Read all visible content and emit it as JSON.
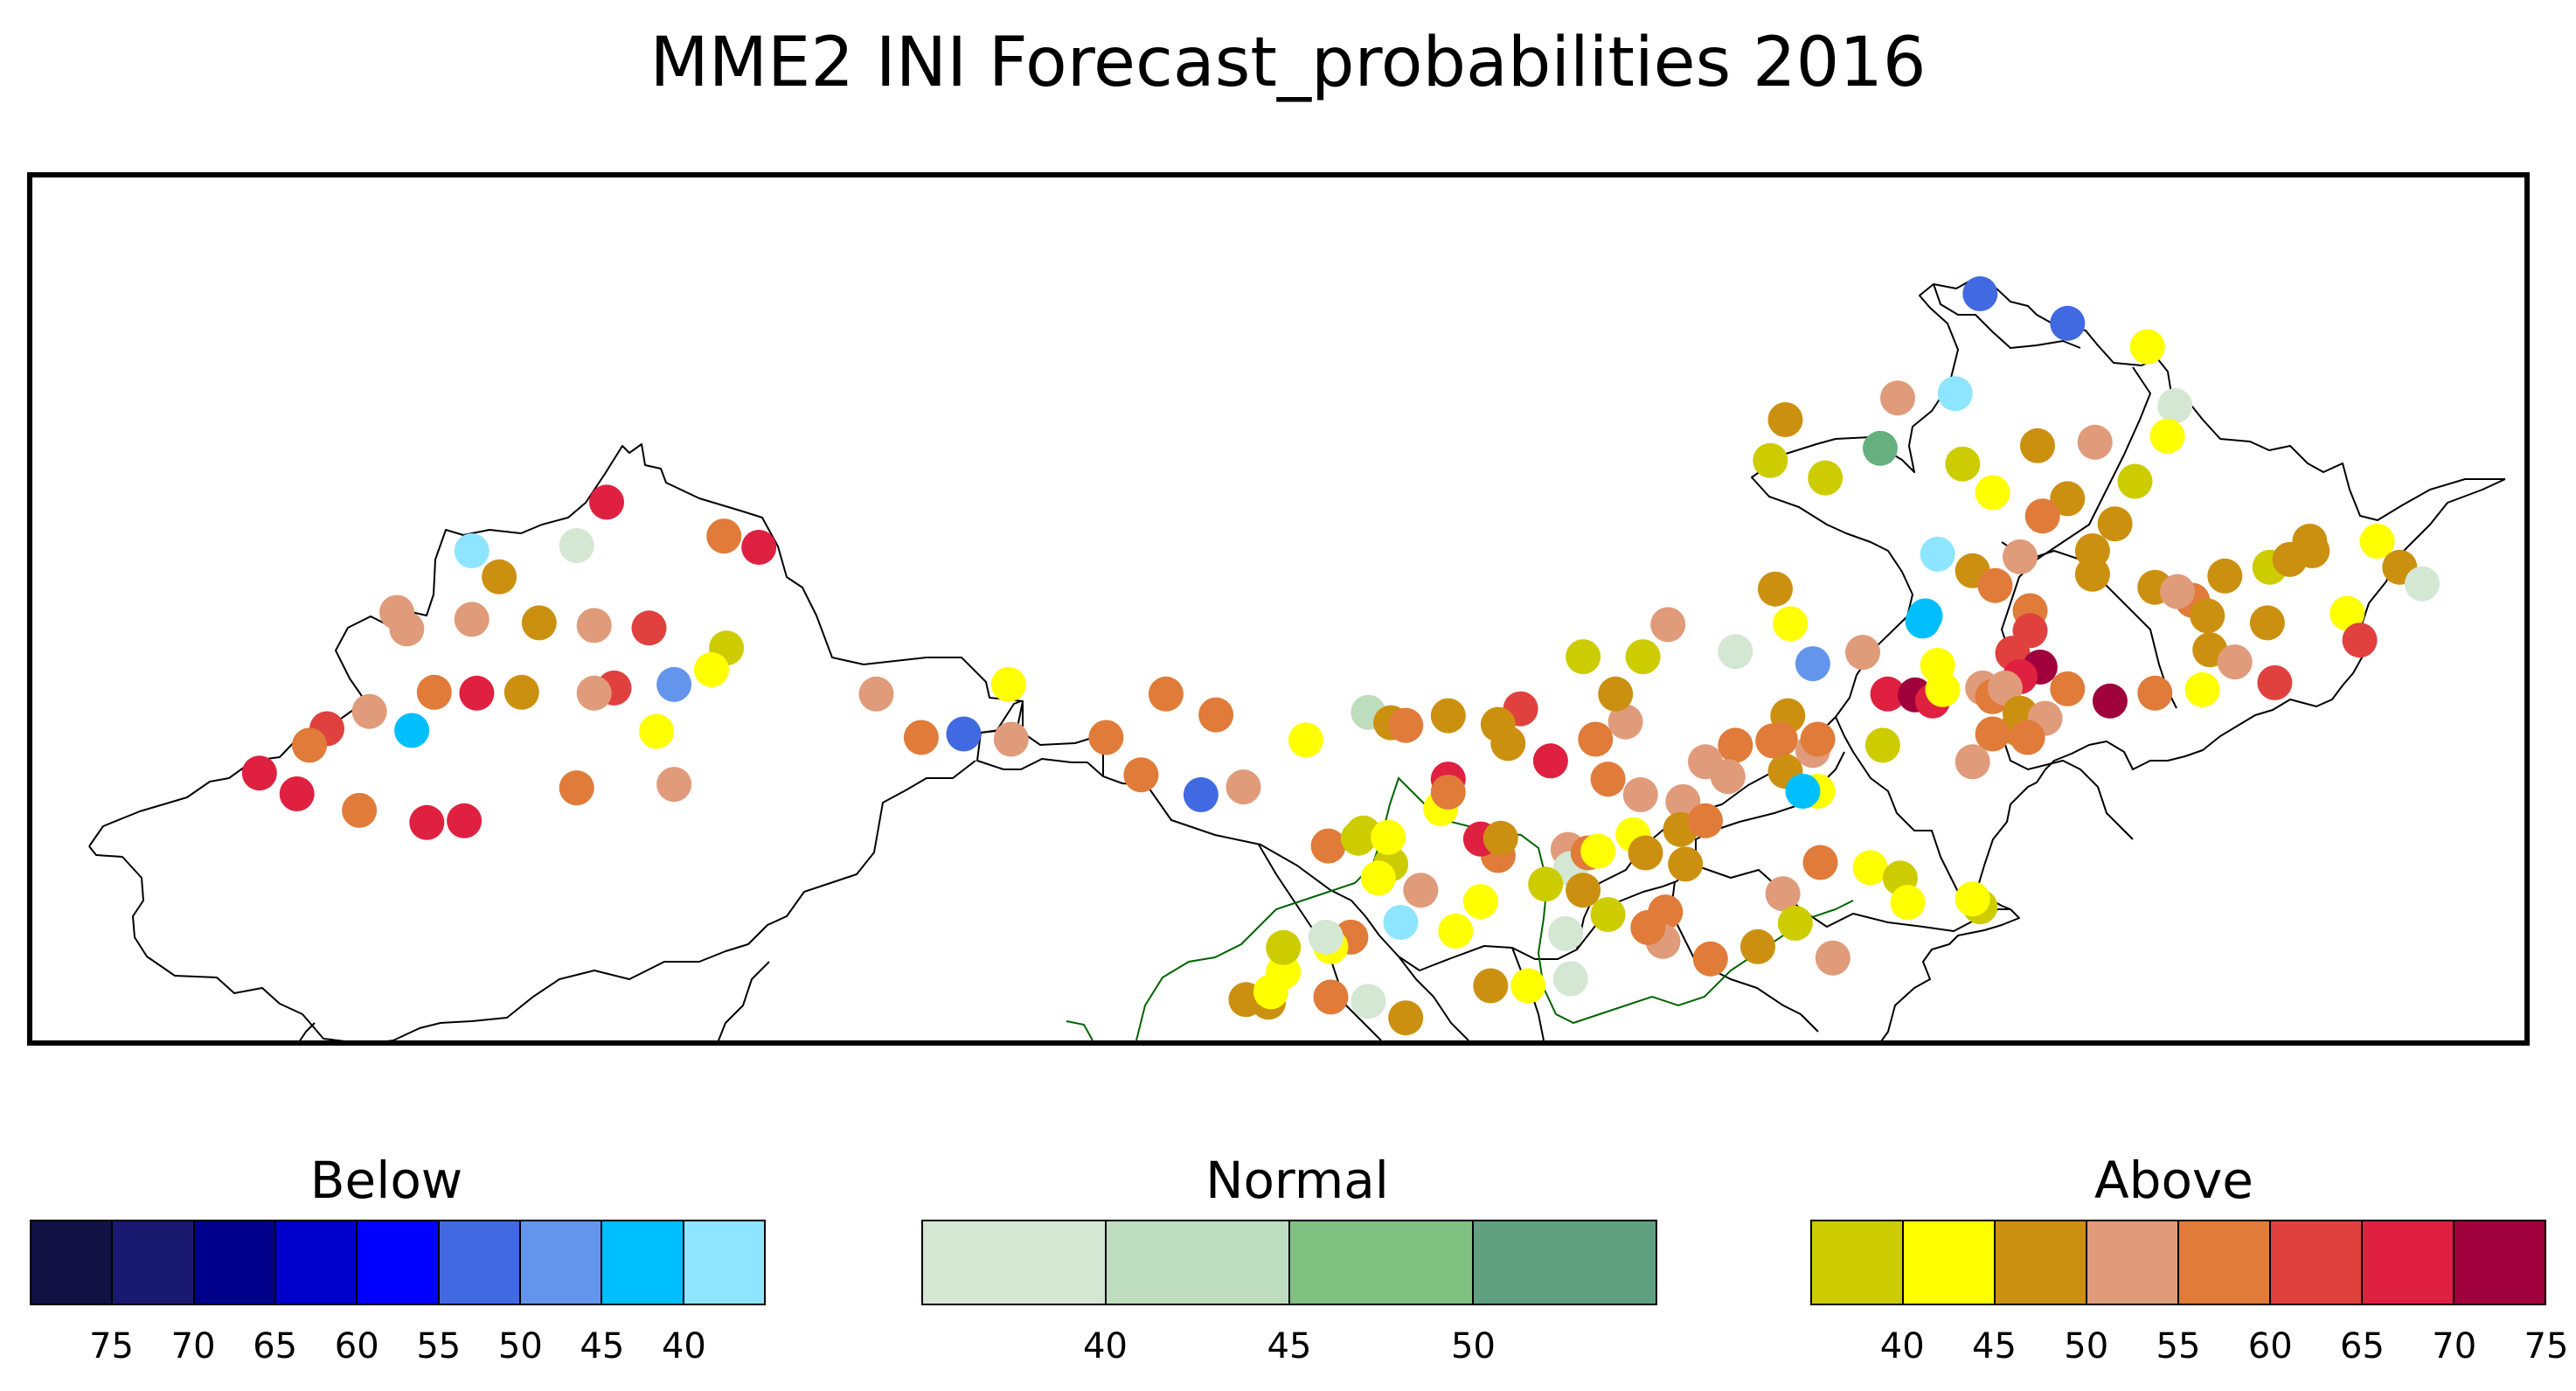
{
  "title": "MME2 INI Forecast_probabilities 2016",
  "legends": {
    "below": {
      "title": "Below",
      "colors": [
        "#111144",
        "#191970",
        "#00008b",
        "#0000cd",
        "#0000ff",
        "#4169e1",
        "#6495ed",
        "#00bfff",
        "#8ee5ff"
      ],
      "ticks": [
        "75",
        "70",
        "65",
        "60",
        "55",
        "50",
        "45",
        "40"
      ]
    },
    "normal": {
      "title": "Normal",
      "colors": [
        "#d3e7d3",
        "#bedcbe",
        "#80c080",
        "#5fa080"
      ],
      "ticks": [
        "40",
        "45",
        "50"
      ]
    },
    "above": {
      "title": "Above",
      "colors": [
        "#cccc00",
        "#ffff00",
        "#cc9011",
        "#e09b7a",
        "#e07b39",
        "#e0413f",
        "#e02040",
        "#a0003c"
      ],
      "ticks": [
        "40",
        "45",
        "50",
        "55",
        "60",
        "65",
        "70",
        "75"
      ]
    }
  },
  "stations": [
    {
      "lon": 0.231,
      "lat": 0.623,
      "c": "#e02040"
    },
    {
      "lon": 0.177,
      "lat": 0.567,
      "c": "#8ee5ff"
    },
    {
      "lon": 0.219,
      "lat": 0.573,
      "c": "#d3e7d3"
    },
    {
      "lon": 0.278,
      "lat": 0.584,
      "c": "#e07b39"
    },
    {
      "lon": 0.292,
      "lat": 0.571,
      "c": "#e02040"
    },
    {
      "lon": 0.188,
      "lat": 0.537,
      "c": "#cc9011"
    },
    {
      "lon": 0.147,
      "lat": 0.496,
      "c": "#e09b7a"
    },
    {
      "lon": 0.151,
      "lat": 0.477,
      "c": "#e09b7a"
    },
    {
      "lon": 0.177,
      "lat": 0.488,
      "c": "#e09b7a"
    },
    {
      "lon": 0.204,
      "lat": 0.484,
      "c": "#cc9011"
    },
    {
      "lon": 0.226,
      "lat": 0.481,
      "c": "#e09b7a"
    },
    {
      "lon": 0.248,
      "lat": 0.478,
      "c": "#e0413f"
    },
    {
      "lon": 0.279,
      "lat": 0.455,
      "c": "#cccc00"
    },
    {
      "lon": 0.273,
      "lat": 0.43,
      "c": "#ffff00"
    },
    {
      "lon": 0.258,
      "lat": 0.413,
      "c": "#6495ed"
    },
    {
      "lon": 0.234,
      "lat": 0.409,
      "c": "#e0413f"
    },
    {
      "lon": 0.226,
      "lat": 0.403,
      "c": "#e09b7a"
    },
    {
      "lon": 0.197,
      "lat": 0.404,
      "c": "#cc9011"
    },
    {
      "lon": 0.179,
      "lat": 0.403,
      "c": "#e02040"
    },
    {
      "lon": 0.162,
      "lat": 0.404,
      "c": "#e07b39"
    },
    {
      "lon": 0.136,
      "lat": 0.382,
      "c": "#e09b7a"
    },
    {
      "lon": 0.153,
      "lat": 0.36,
      "c": "#00bfff"
    },
    {
      "lon": 0.119,
      "lat": 0.362,
      "c": "#e0413f"
    },
    {
      "lon": 0.112,
      "lat": 0.343,
      "c": "#e07b39"
    },
    {
      "lon": 0.251,
      "lat": 0.359,
      "c": "#ffff00"
    },
    {
      "lon": 0.258,
      "lat": 0.298,
      "c": "#e09b7a"
    },
    {
      "lon": 0.219,
      "lat": 0.294,
      "c": "#e07b39"
    },
    {
      "lon": 0.092,
      "lat": 0.311,
      "c": "#e02040"
    },
    {
      "lon": 0.107,
      "lat": 0.287,
      "c": "#e02040"
    },
    {
      "lon": 0.132,
      "lat": 0.268,
      "c": "#e07b39"
    },
    {
      "lon": 0.159,
      "lat": 0.254,
      "c": "#e02040"
    },
    {
      "lon": 0.174,
      "lat": 0.256,
      "c": "#e02040"
    },
    {
      "lon": 0.339,
      "lat": 0.402,
      "c": "#e09b7a"
    },
    {
      "lon": 0.392,
      "lat": 0.413,
      "c": "#ffff00"
    },
    {
      "lon": 0.455,
      "lat": 0.402,
      "c": "#e07b39"
    },
    {
      "lon": 0.475,
      "lat": 0.378,
      "c": "#e07b39"
    },
    {
      "lon": 0.357,
      "lat": 0.352,
      "c": "#e07b39"
    },
    {
      "lon": 0.374,
      "lat": 0.356,
      "c": "#4169e1"
    },
    {
      "lon": 0.393,
      "lat": 0.35,
      "c": "#e09b7a"
    },
    {
      "lon": 0.431,
      "lat": 0.352,
      "c": "#e07b39"
    },
    {
      "lon": 0.445,
      "lat": 0.309,
      "c": "#e07b39"
    },
    {
      "lon": 0.469,
      "lat": 0.286,
      "c": "#4169e1"
    },
    {
      "lon": 0.486,
      "lat": 0.295,
      "c": "#e09b7a"
    },
    {
      "lon": 0.511,
      "lat": 0.349,
      "c": "#ffff00"
    },
    {
      "lon": 0.536,
      "lat": 0.381,
      "c": "#bedcbe"
    },
    {
      "lon": 0.545,
      "lat": 0.369,
      "c": "#cc9011"
    },
    {
      "lon": 0.551,
      "lat": 0.366,
      "c": "#e07b39"
    },
    {
      "lon": 0.568,
      "lat": 0.377,
      "c": "#cc9011"
    },
    {
      "lon": 0.597,
      "lat": 0.385,
      "c": "#e0413f"
    },
    {
      "lon": 0.588,
      "lat": 0.367,
      "c": "#cc9011"
    },
    {
      "lon": 0.592,
      "lat": 0.345,
      "c": "#cc9011"
    },
    {
      "lon": 0.609,
      "lat": 0.325,
      "c": "#e02040"
    },
    {
      "lon": 0.627,
      "lat": 0.35,
      "c": "#e07b39"
    },
    {
      "lon": 0.639,
      "lat": 0.37,
      "c": "#e09b7a"
    },
    {
      "lon": 0.635,
      "lat": 0.402,
      "c": "#cc9011"
    },
    {
      "lon": 0.622,
      "lat": 0.445,
      "c": "#cccc00"
    },
    {
      "lon": 0.646,
      "lat": 0.445,
      "c": "#cccc00"
    },
    {
      "lon": 0.656,
      "lat": 0.482,
      "c": "#e09b7a"
    },
    {
      "lon": 0.683,
      "lat": 0.451,
      "c": "#d3e7d3"
    },
    {
      "lon": 0.705,
      "lat": 0.483,
      "c": "#ffff00"
    },
    {
      "lon": 0.714,
      "lat": 0.437,
      "c": "#6495ed"
    },
    {
      "lon": 0.734,
      "lat": 0.45,
      "c": "#e09b7a"
    },
    {
      "lon": 0.758,
      "lat": 0.486,
      "c": "#00bfff"
    },
    {
      "lon": 0.764,
      "lat": 0.435,
      "c": "#ffff00"
    },
    {
      "lon": 0.699,
      "lat": 0.523,
      "c": "#cc9011"
    },
    {
      "lon": 0.703,
      "lat": 0.718,
      "c": "#cc9011"
    },
    {
      "lon": 0.697,
      "lat": 0.671,
      "c": "#cccc00"
    },
    {
      "lon": 0.719,
      "lat": 0.651,
      "c": "#cccc00"
    },
    {
      "lon": 0.741,
      "lat": 0.685,
      "c": "#66b080"
    },
    {
      "lon": 0.748,
      "lat": 0.743,
      "c": "#e09b7a"
    },
    {
      "lon": 0.781,
      "lat": 0.863,
      "c": "#4169e1"
    },
    {
      "lon": 0.816,
      "lat": 0.829,
      "c": "#4169e1"
    },
    {
      "lon": 0.848,
      "lat": 0.802,
      "c": "#ffff00"
    },
    {
      "lon": 0.859,
      "lat": 0.734,
      "c": "#d3e7d3"
    },
    {
      "lon": 0.856,
      "lat": 0.699,
      "c": "#ffff00"
    },
    {
      "lon": 0.843,
      "lat": 0.647,
      "c": "#cccc00"
    },
    {
      "lon": 0.827,
      "lat": 0.692,
      "c": "#e09b7a"
    },
    {
      "lon": 0.804,
      "lat": 0.688,
      "c": "#cc9011"
    },
    {
      "lon": 0.771,
      "lat": 0.748,
      "c": "#8ee5ff"
    },
    {
      "lon": 0.774,
      "lat": 0.667,
      "c": "#cccc00"
    },
    {
      "lon": 0.786,
      "lat": 0.634,
      "c": "#ffff00"
    },
    {
      "lon": 0.816,
      "lat": 0.627,
      "c": "#cc9011"
    },
    {
      "lon": 0.806,
      "lat": 0.607,
      "c": "#e07b39"
    },
    {
      "lon": 0.835,
      "lat": 0.598,
      "c": "#cc9011"
    },
    {
      "lon": 0.826,
      "lat": 0.567,
      "c": "#cc9011"
    },
    {
      "lon": 0.797,
      "lat": 0.56,
      "c": "#e09b7a"
    },
    {
      "lon": 0.764,
      "lat": 0.563,
      "c": "#8ee5ff"
    },
    {
      "lon": 0.778,
      "lat": 0.544,
      "c": "#cc9011"
    },
    {
      "lon": 0.787,
      "lat": 0.527,
      "c": "#e07b39"
    },
    {
      "lon": 0.759,
      "lat": 0.492,
      "c": "#00bfff"
    },
    {
      "lon": 0.801,
      "lat": 0.498,
      "c": "#e07b39"
    },
    {
      "lon": 0.801,
      "lat": 0.475,
      "c": "#e0413f"
    },
    {
      "lon": 0.794,
      "lat": 0.449,
      "c": "#e0413f"
    },
    {
      "lon": 0.805,
      "lat": 0.433,
      "c": "#a0003c"
    },
    {
      "lon": 0.797,
      "lat": 0.422,
      "c": "#e02040"
    },
    {
      "lon": 0.816,
      "lat": 0.408,
      "c": "#e07b39"
    },
    {
      "lon": 0.833,
      "lat": 0.394,
      "c": "#a0003c"
    },
    {
      "lon": 0.826,
      "lat": 0.54,
      "c": "#cc9011"
    },
    {
      "lon": 0.851,
      "lat": 0.525,
      "c": "#cc9011"
    },
    {
      "lon": 0.866,
      "lat": 0.51,
      "c": "#e07b39"
    },
    {
      "lon": 0.879,
      "lat": 0.538,
      "c": "#cc9011"
    },
    {
      "lon": 0.897,
      "lat": 0.548,
      "c": "#cccc00"
    },
    {
      "lon": 0.905,
      "lat": 0.557,
      "c": "#cc9011"
    },
    {
      "lon": 0.914,
      "lat": 0.567,
      "c": "#cc9011"
    },
    {
      "lon": 0.913,
      "lat": 0.578,
      "c": "#cc9011"
    },
    {
      "lon": 0.94,
      "lat": 0.578,
      "c": "#ffff00"
    },
    {
      "lon": 0.949,
      "lat": 0.548,
      "c": "#cc9011"
    },
    {
      "lon": 0.958,
      "lat": 0.529,
      "c": "#d3e7d3"
    },
    {
      "lon": 0.928,
      "lat": 0.495,
      "c": "#ffff00"
    },
    {
      "lon": 0.896,
      "lat": 0.484,
      "c": "#cc9011"
    },
    {
      "lon": 0.872,
      "lat": 0.492,
      "c": "#cc9011"
    },
    {
      "lon": 0.86,
      "lat": 0.52,
      "c": "#e09b7a"
    },
    {
      "lon": 0.873,
      "lat": 0.453,
      "c": "#cc9011"
    },
    {
      "lon": 0.883,
      "lat": 0.439,
      "c": "#e09b7a"
    },
    {
      "lon": 0.899,
      "lat": 0.415,
      "c": "#e0413f"
    },
    {
      "lon": 0.933,
      "lat": 0.464,
      "c": "#e0413f"
    },
    {
      "lon": 0.87,
      "lat": 0.407,
      "c": "#ffff00"
    },
    {
      "lon": 0.851,
      "lat": 0.403,
      "c": "#e07b39"
    },
    {
      "lon": 0.744,
      "lat": 0.402,
      "c": "#e02040"
    },
    {
      "lon": 0.755,
      "lat": 0.401,
      "c": "#a0003c"
    },
    {
      "lon": 0.762,
      "lat": 0.394,
      "c": "#e02040"
    },
    {
      "lon": 0.766,
      "lat": 0.407,
      "c": "#ffff00"
    },
    {
      "lon": 0.782,
      "lat": 0.409,
      "c": "#e09b7a"
    },
    {
      "lon": 0.786,
      "lat": 0.399,
      "c": "#e07b39"
    },
    {
      "lon": 0.791,
      "lat": 0.409,
      "c": "#e09b7a"
    },
    {
      "lon": 0.797,
      "lat": 0.38,
      "c": "#cc9011"
    },
    {
      "lon": 0.796,
      "lat": 0.362,
      "c": "#cc9011"
    },
    {
      "lon": 0.807,
      "lat": 0.374,
      "c": "#e09b7a"
    },
    {
      "lon": 0.786,
      "lat": 0.356,
      "c": "#e07b39"
    },
    {
      "lon": 0.8,
      "lat": 0.352,
      "c": "#e07b39"
    },
    {
      "lon": 0.778,
      "lat": 0.324,
      "c": "#e09b7a"
    },
    {
      "lon": 0.742,
      "lat": 0.343,
      "c": "#cccc00"
    },
    {
      "lon": 0.704,
      "lat": 0.377,
      "c": "#cc9011"
    },
    {
      "lon": 0.701,
      "lat": 0.35,
      "c": "#e07b39"
    },
    {
      "lon": 0.683,
      "lat": 0.343,
      "c": "#e07b39"
    },
    {
      "lon": 0.68,
      "lat": 0.307,
      "c": "#e09b7a"
    },
    {
      "lon": 0.703,
      "lat": 0.313,
      "c": "#cc9011"
    },
    {
      "lon": 0.714,
      "lat": 0.337,
      "c": "#e09b7a"
    },
    {
      "lon": 0.716,
      "lat": 0.35,
      "c": "#e07b39"
    },
    {
      "lon": 0.698,
      "lat": 0.348,
      "c": "#e07b39"
    },
    {
      "lon": 0.716,
      "lat": 0.29,
      "c": "#ffff00"
    },
    {
      "lon": 0.71,
      "lat": 0.29,
      "c": "#00bfff"
    },
    {
      "lon": 0.671,
      "lat": 0.324,
      "c": "#e09b7a"
    },
    {
      "lon": 0.662,
      "lat": 0.278,
      "c": "#e09b7a"
    },
    {
      "lon": 0.661,
      "lat": 0.246,
      "c": "#cc9011"
    },
    {
      "lon": 0.645,
      "lat": 0.286,
      "c": "#e09b7a"
    },
    {
      "lon": 0.632,
      "lat": 0.304,
      "c": "#e07b39"
    },
    {
      "lon": 0.616,
      "lat": 0.223,
      "c": "#e09b7a"
    },
    {
      "lon": 0.617,
      "lat": 0.201,
      "c": "#d3e7d3"
    },
    {
      "lon": 0.622,
      "lat": 0.176,
      "c": "#cc9011"
    },
    {
      "lon": 0.642,
      "lat": 0.24,
      "c": "#ffff00"
    },
    {
      "lon": 0.647,
      "lat": 0.219,
      "c": "#cc9011"
    },
    {
      "lon": 0.663,
      "lat": 0.206,
      "c": "#cc9011"
    },
    {
      "lon": 0.655,
      "lat": 0.151,
      "c": "#e07b39"
    },
    {
      "lon": 0.702,
      "lat": 0.172,
      "c": "#e09b7a"
    },
    {
      "lon": 0.707,
      "lat": 0.138,
      "c": "#cccc00"
    },
    {
      "lon": 0.717,
      "lat": 0.208,
      "c": "#e07b39"
    },
    {
      "lon": 0.737,
      "lat": 0.202,
      "c": "#ffff00"
    },
    {
      "lon": 0.749,
      "lat": 0.19,
      "c": "#cccc00"
    },
    {
      "lon": 0.781,
      "lat": 0.157,
      "c": "#cccc00"
    },
    {
      "lon": 0.778,
      "lat": 0.166,
      "c": "#ffff00"
    },
    {
      "lon": 0.632,
      "lat": 0.148,
      "c": "#cccc00"
    },
    {
      "lon": 0.585,
      "lat": 0.066,
      "c": "#cc9011"
    },
    {
      "lon": 0.6,
      "lat": 0.066,
      "c": "#ffff00"
    },
    {
      "lon": 0.615,
      "lat": 0.126,
      "c": "#d3e7d3"
    },
    {
      "lon": 0.624,
      "lat": 0.219,
      "c": "#e07b39"
    },
    {
      "lon": 0.654,
      "lat": 0.117,
      "c": "#e09b7a"
    },
    {
      "lon": 0.648,
      "lat": 0.133,
      "c": "#e07b39"
    },
    {
      "lon": 0.628,
      "lat": 0.221,
      "c": "#ffff00"
    },
    {
      "lon": 0.607,
      "lat": 0.183,
      "c": "#cccc00"
    },
    {
      "lon": 0.588,
      "lat": 0.216,
      "c": "#e07b39"
    },
    {
      "lon": 0.581,
      "lat": 0.163,
      "c": "#ffff00"
    },
    {
      "lon": 0.581,
      "lat": 0.235,
      "c": "#e02040"
    },
    {
      "lon": 0.565,
      "lat": 0.27,
      "c": "#ffff00"
    },
    {
      "lon": 0.568,
      "lat": 0.304,
      "c": "#e02040"
    },
    {
      "lon": 0.568,
      "lat": 0.289,
      "c": "#e07b39"
    },
    {
      "lon": 0.545,
      "lat": 0.206,
      "c": "#cccc00"
    },
    {
      "lon": 0.54,
      "lat": 0.19,
      "c": "#ffff00"
    },
    {
      "lon": 0.534,
      "lat": 0.242,
      "c": "#cccc00"
    },
    {
      "lon": 0.549,
      "lat": 0.139,
      "c": "#8ee5ff"
    },
    {
      "lon": 0.529,
      "lat": 0.122,
      "c": "#e07b39"
    },
    {
      "lon": 0.521,
      "lat": 0.053,
      "c": "#e07b39"
    },
    {
      "lon": 0.551,
      "lat": 0.029,
      "c": "#cc9011"
    },
    {
      "lon": 0.571,
      "lat": 0.129,
      "c": "#ffff00"
    },
    {
      "lon": 0.536,
      "lat": 0.048,
      "c": "#d3e7d3"
    },
    {
      "lon": 0.521,
      "lat": 0.111,
      "c": "#ffff00"
    },
    {
      "lon": 0.502,
      "lat": 0.082,
      "c": "#ffff00"
    },
    {
      "lon": 0.519,
      "lat": 0.122,
      "c": "#d3e7d3"
    },
    {
      "lon": 0.487,
      "lat": 0.05,
      "c": "#cc9011"
    },
    {
      "lon": 0.496,
      "lat": 0.047,
      "c": "#cc9011"
    },
    {
      "lon": 0.497,
      "lat": 0.059,
      "c": "#ffff00"
    },
    {
      "lon": 0.502,
      "lat": 0.11,
      "c": "#cccc00"
    },
    {
      "lon": 0.557,
      "lat": 0.176,
      "c": "#e09b7a"
    },
    {
      "lon": 0.52,
      "lat": 0.227,
      "c": "#e07b39"
    },
    {
      "lon": 0.589,
      "lat": 0.236,
      "c": "#cc9011"
    },
    {
      "lon": 0.617,
      "lat": 0.074,
      "c": "#d3e7d3"
    },
    {
      "lon": 0.673,
      "lat": 0.097,
      "c": "#e07b39"
    },
    {
      "lon": 0.692,
      "lat": 0.111,
      "c": "#cc9011"
    },
    {
      "lon": 0.722,
      "lat": 0.098,
      "c": "#e09b7a"
    },
    {
      "lon": 0.752,
      "lat": 0.162,
      "c": "#ffff00"
    },
    {
      "lon": 0.671,
      "lat": 0.256,
      "c": "#e07b39"
    },
    {
      "lon": 0.532,
      "lat": 0.236,
      "c": "#cccc00"
    },
    {
      "lon": 0.544,
      "lat": 0.237,
      "c": "#ffff00"
    }
  ]
}
